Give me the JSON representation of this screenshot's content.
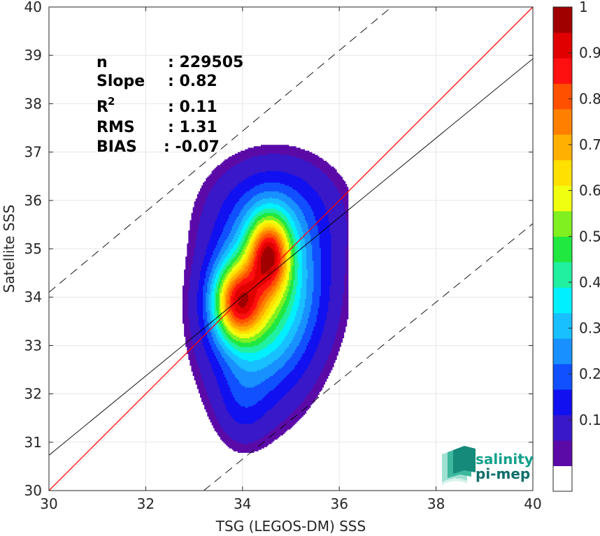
{
  "chart_data": {
    "type": "contour",
    "xlabel": "TSG (LEGOS-DM) SSS",
    "ylabel": "Satellite SSS",
    "xlim": [
      30,
      40
    ],
    "ylim": [
      30,
      40
    ],
    "x_ticks": [
      30,
      32,
      34,
      36,
      38,
      40
    ],
    "y_ticks": [
      30,
      31,
      32,
      33,
      34,
      35,
      36,
      37,
      38,
      39,
      40
    ],
    "grid": true,
    "stats": [
      {
        "key": "n",
        "value": ": 229505"
      },
      {
        "key": "Slope",
        "value": ": 0.82"
      },
      {
        "key": "R",
        "sup": "2",
        "value": ": 0.11"
      },
      {
        "key": "RMS",
        "value": ": 1.31"
      },
      {
        "key": "BIAS",
        "value": ": -0.07"
      }
    ],
    "lines": [
      {
        "name": "1:1 line",
        "color": "#ff0000",
        "x": [
          30,
          40
        ],
        "y": [
          30,
          40
        ]
      },
      {
        "name": "fit",
        "color": "#000000",
        "x": [
          30,
          40
        ],
        "y": [
          30.73,
          38.93
        ]
      },
      {
        "name": "upper",
        "color": "#000000",
        "dash": true,
        "x": [
          30,
          37.08
        ],
        "y": [
          34.1,
          40
        ]
      },
      {
        "name": "lower",
        "color": "#000000",
        "dash": true,
        "x": [
          33.2,
          40
        ],
        "y": [
          30,
          35.52
        ]
      }
    ],
    "density_peaks": [
      {
        "x": 33.9,
        "y": 33.9,
        "value": 1.0
      },
      {
        "x": 34.55,
        "y": 34.9,
        "value": 0.98
      }
    ],
    "colorbar": {
      "ticks": [
        0.1,
        0.2,
        0.3,
        0.4,
        0.5,
        0.6,
        0.7,
        0.8,
        0.9,
        1
      ],
      "tick_labels": [
        "0.1",
        "0.2",
        "0.3",
        "0.4",
        "0.5",
        "0.6",
        "0.7",
        "0.8",
        "0.9",
        "1"
      ],
      "colors": [
        "#ffffff",
        "#5b0aa8",
        "#3818c8",
        "#1010f0",
        "#1050ff",
        "#1890ff",
        "#18c0ff",
        "#00f0ff",
        "#20f0a0",
        "#20e840",
        "#80f020",
        "#f0ff10",
        "#ffe000",
        "#ffb000",
        "#ff8000",
        "#ff5000",
        "#ff1010",
        "#e00000",
        "#a00000"
      ]
    }
  },
  "logo": {
    "line1": "salinity",
    "line2": "pi-mep"
  }
}
